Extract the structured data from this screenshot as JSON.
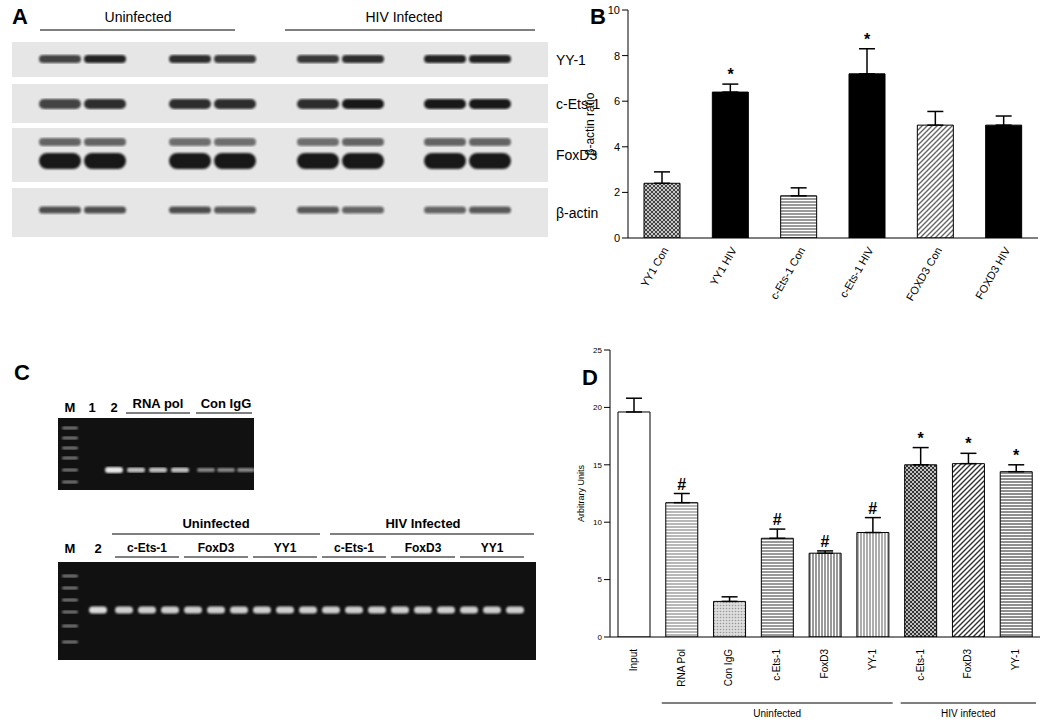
{
  "panels": [
    "A",
    "B",
    "C",
    "D"
  ],
  "western_blot": {
    "conditions": [
      "Uninfected",
      "HIV Infected"
    ],
    "proteins": [
      "YY-1",
      "c-Ets-1",
      "FoxD3",
      "β-actin"
    ]
  },
  "gel": {
    "top_lanes": [
      "M",
      "1",
      "2"
    ],
    "top_groups": [
      "RNA pol",
      "Con IgG"
    ],
    "bottom_lanes": [
      "M",
      "2"
    ],
    "conditions": [
      "Uninfected",
      "HIV Infected"
    ],
    "antibodies": [
      "c-Ets-1",
      "FoxD3",
      "YY1"
    ]
  },
  "chart_data": [
    {
      "type": "bar",
      "ylabel": "β-actin ratio",
      "categories": [
        "YY1 Con",
        "YY1 HIV",
        "c-Ets-1 Con",
        "c-Ets-1 HIV",
        "FOXD3 Con",
        "FOXD3 HIV"
      ],
      "values": [
        2.4,
        6.4,
        1.85,
        7.2,
        4.95,
        4.95
      ],
      "errors": [
        0.5,
        0.35,
        0.35,
        1.1,
        0.6,
        0.4
      ],
      "annotations": [
        null,
        "*",
        null,
        "*",
        null,
        null
      ],
      "colors": [
        "#444444",
        "#000000",
        "#555555",
        "#000000",
        "#666666",
        "#000000"
      ],
      "ylim": [
        0,
        10
      ],
      "yticks": [
        0,
        2,
        4,
        6,
        8,
        10
      ]
    },
    {
      "type": "bar",
      "ylabel": "Arbitrary Units",
      "categories": [
        "Input",
        "RNA Pol",
        "Con IgG",
        "c-Ets-1",
        "FoxD3",
        "YY-1",
        "c-Ets-1",
        "FoxD3",
        "YY-1"
      ],
      "values": [
        19.6,
        11.7,
        3.1,
        8.6,
        7.3,
        9.1,
        15.0,
        15.1,
        14.4
      ],
      "errors": [
        1.2,
        0.8,
        0.4,
        0.8,
        0.2,
        1.3,
        1.5,
        0.9,
        0.6
      ],
      "annotations": [
        null,
        "#",
        null,
        "#",
        "#",
        "#",
        "*",
        "*",
        "*"
      ],
      "colors": [
        "#ffffff",
        "#888888",
        "#999999",
        "#555555",
        "#555555",
        "#777777",
        "#333333",
        "#333333",
        "#444444"
      ],
      "groups": [
        {
          "label": "Uninfected",
          "start": 1,
          "end": 5
        },
        {
          "label": "HIV infected",
          "start": 6,
          "end": 8
        }
      ],
      "ylim": [
        0,
        25
      ],
      "yticks": [
        0,
        5,
        10,
        15,
        20,
        25
      ]
    }
  ]
}
